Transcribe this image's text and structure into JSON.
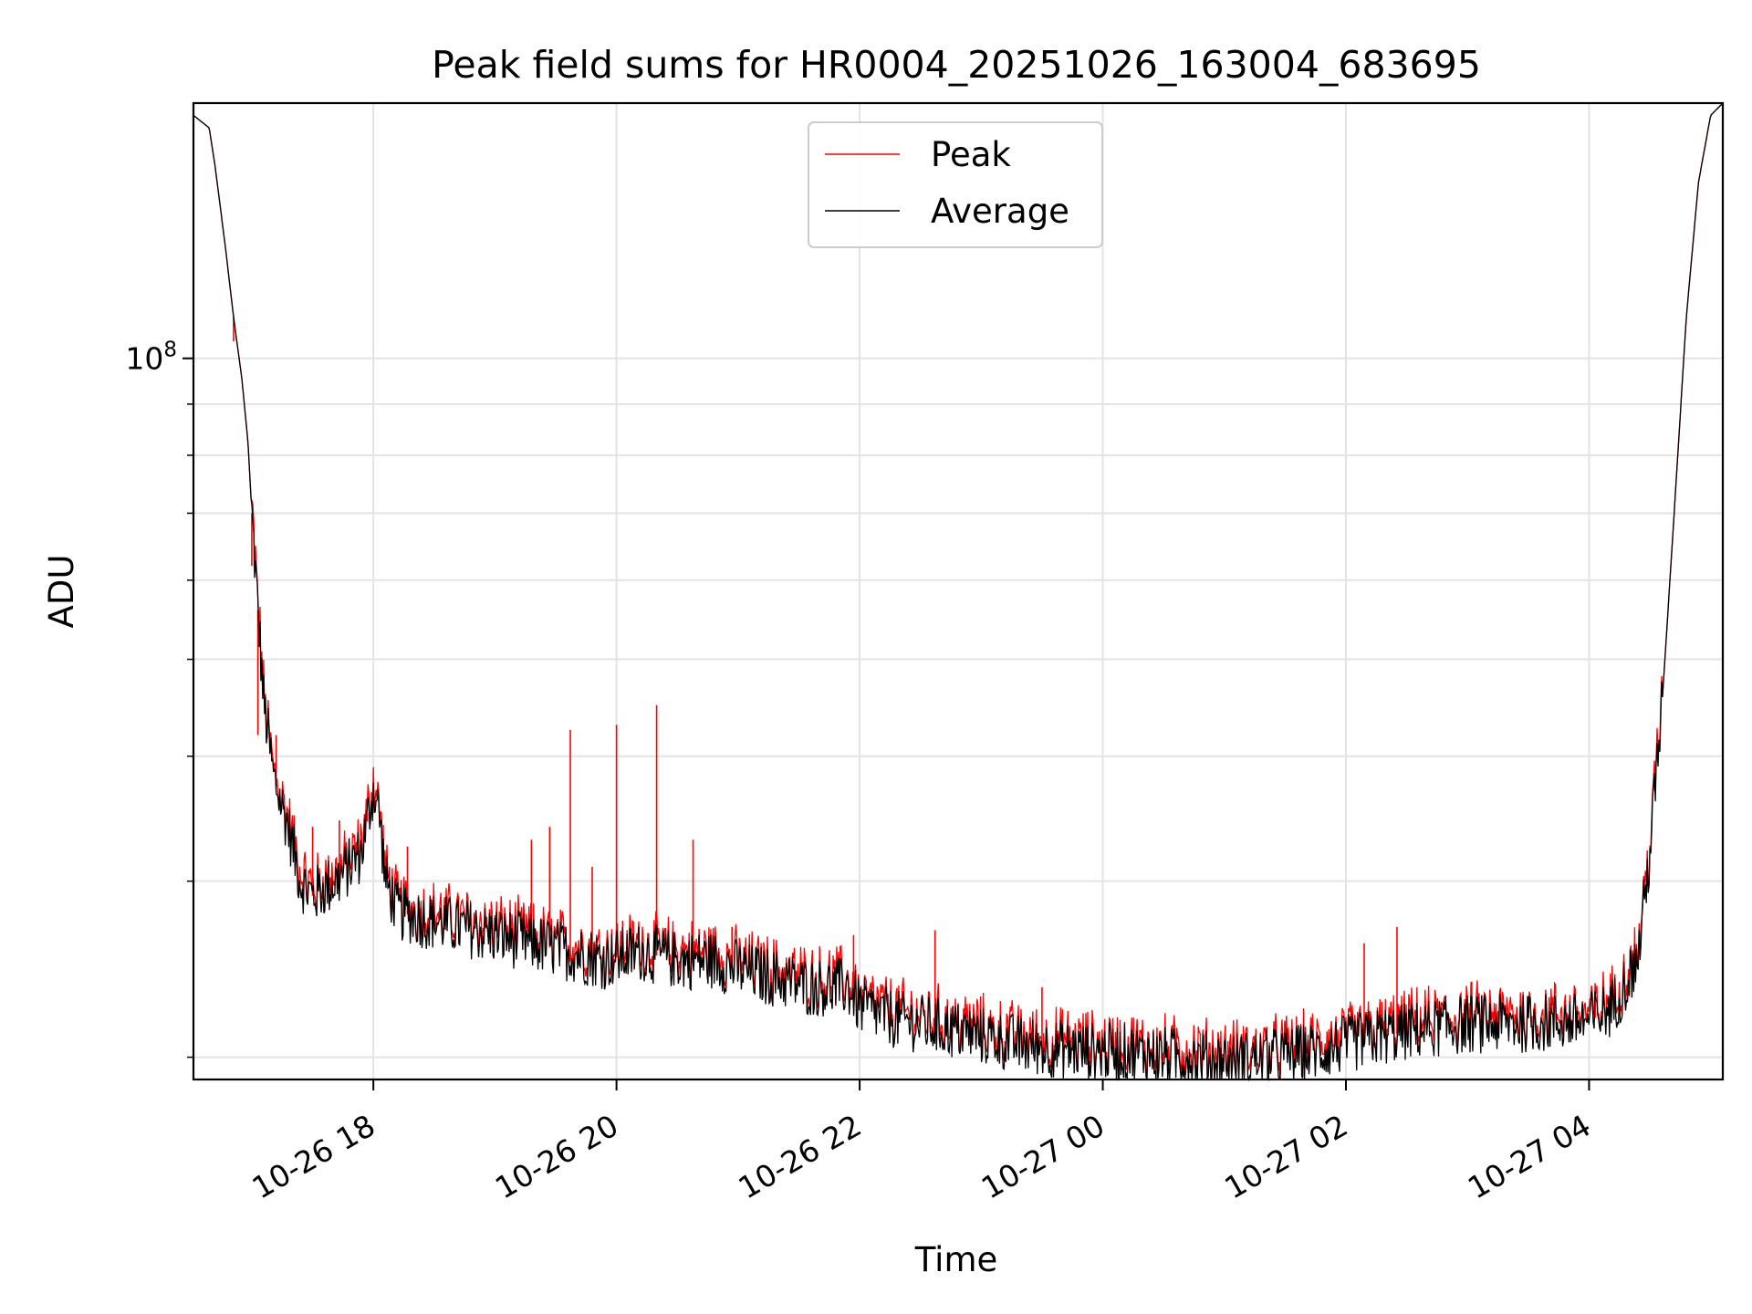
{
  "chart_data": {
    "type": "line",
    "title": "Peak field sums for HR0004_20251026_163004_683695",
    "xlabel": "Time",
    "ylabel": "ADU",
    "yscale": "log",
    "ylim": [
      19000000,
      180000000
    ],
    "y_major_ticks": [
      {
        "value": 100000000,
        "base": "10",
        "exp": "8"
      }
    ],
    "y_minor_ticks": [
      20000000,
      30000000,
      40000000,
      50000000,
      60000000,
      70000000,
      80000000,
      90000000,
      200000000
    ],
    "x_units": "hours since 10-26 00:00",
    "xlim": [
      16.52,
      29.1
    ],
    "x_ticks": [
      {
        "value": 18,
        "label": "10-26 18"
      },
      {
        "value": 20,
        "label": "10-26 20"
      },
      {
        "value": 22,
        "label": "10-26 22"
      },
      {
        "value": 24,
        "label": "10-27 00"
      },
      {
        "value": 26,
        "label": "10-27 02"
      },
      {
        "value": 28,
        "label": "10-27 04"
      }
    ],
    "grid": true,
    "legend": {
      "position": "top-center",
      "entries": [
        {
          "name": "Peak",
          "color": "#ff0000"
        },
        {
          "name": "Average",
          "color": "#000000"
        }
      ]
    },
    "series": [
      {
        "name": "Average",
        "color": "#000000",
        "x": [
          16.52,
          16.65,
          16.7,
          16.78,
          16.85,
          16.92,
          16.97,
          17.0,
          17.05,
          17.1,
          17.18,
          17.3,
          17.4,
          17.5,
          17.7,
          17.9,
          18.0,
          18.05,
          18.1,
          18.2,
          18.4,
          18.7,
          19.0,
          19.3,
          19.6,
          19.9,
          20.2,
          20.5,
          20.8,
          21.0,
          21.3,
          21.6,
          21.9,
          22.0,
          22.3,
          22.6,
          23.0,
          23.4,
          23.8,
          24.2,
          24.6,
          25.0,
          25.4,
          25.8,
          26.0,
          26.3,
          26.6,
          27.0,
          27.4,
          27.8,
          28.0,
          28.2,
          28.4,
          28.5,
          28.6,
          28.7,
          28.8,
          28.9,
          29.0,
          29.1
        ],
        "values": [
          175000000,
          170000000,
          155000000,
          130000000,
          110000000,
          95000000,
          82000000,
          70000000,
          56000000,
          45000000,
          38000000,
          34000000,
          30000000,
          29000000,
          30000000,
          32000000,
          37000000,
          35000000,
          30000000,
          28000000,
          27500000,
          27000000,
          26500000,
          26000000,
          25500000,
          25000000,
          25500000,
          25000000,
          25000000,
          24500000,
          24000000,
          23500000,
          23500000,
          22500000,
          21800000,
          21500000,
          21000000,
          20500000,
          20300000,
          20200000,
          20000000,
          19800000,
          20000000,
          20300000,
          20600000,
          21000000,
          21300000,
          21600000,
          21600000,
          21700000,
          21700000,
          22500000,
          25000000,
          32000000,
          45000000,
          70000000,
          110000000,
          150000000,
          175000000,
          180000000
        ]
      },
      {
        "name": "Peak",
        "color": "#ff0000",
        "spikes": [
          {
            "x": 16.85,
            "value": 104000000
          },
          {
            "x": 17.0,
            "value": 62000000
          },
          {
            "x": 17.05,
            "value": 42000000
          },
          {
            "x": 17.2,
            "value": 42000000
          },
          {
            "x": 17.5,
            "value": 34000000
          },
          {
            "x": 17.72,
            "value": 34500000
          },
          {
            "x": 17.95,
            "value": 36000000
          },
          {
            "x": 18.28,
            "value": 32500000
          },
          {
            "x": 18.7,
            "value": 29000000
          },
          {
            "x": 19.3,
            "value": 33000000
          },
          {
            "x": 19.45,
            "value": 34000000
          },
          {
            "x": 19.62,
            "value": 42500000
          },
          {
            "x": 19.8,
            "value": 31000000
          },
          {
            "x": 20.0,
            "value": 43000000
          },
          {
            "x": 20.33,
            "value": 45000000
          },
          {
            "x": 20.63,
            "value": 33000000
          },
          {
            "x": 20.95,
            "value": 27000000
          },
          {
            "x": 21.95,
            "value": 26500000
          },
          {
            "x": 22.62,
            "value": 26800000
          },
          {
            "x": 23.5,
            "value": 23500000
          },
          {
            "x": 26.15,
            "value": 26000000
          },
          {
            "x": 26.42,
            "value": 27000000
          },
          {
            "x": 28.05,
            "value": 23000000
          }
        ]
      }
    ]
  }
}
